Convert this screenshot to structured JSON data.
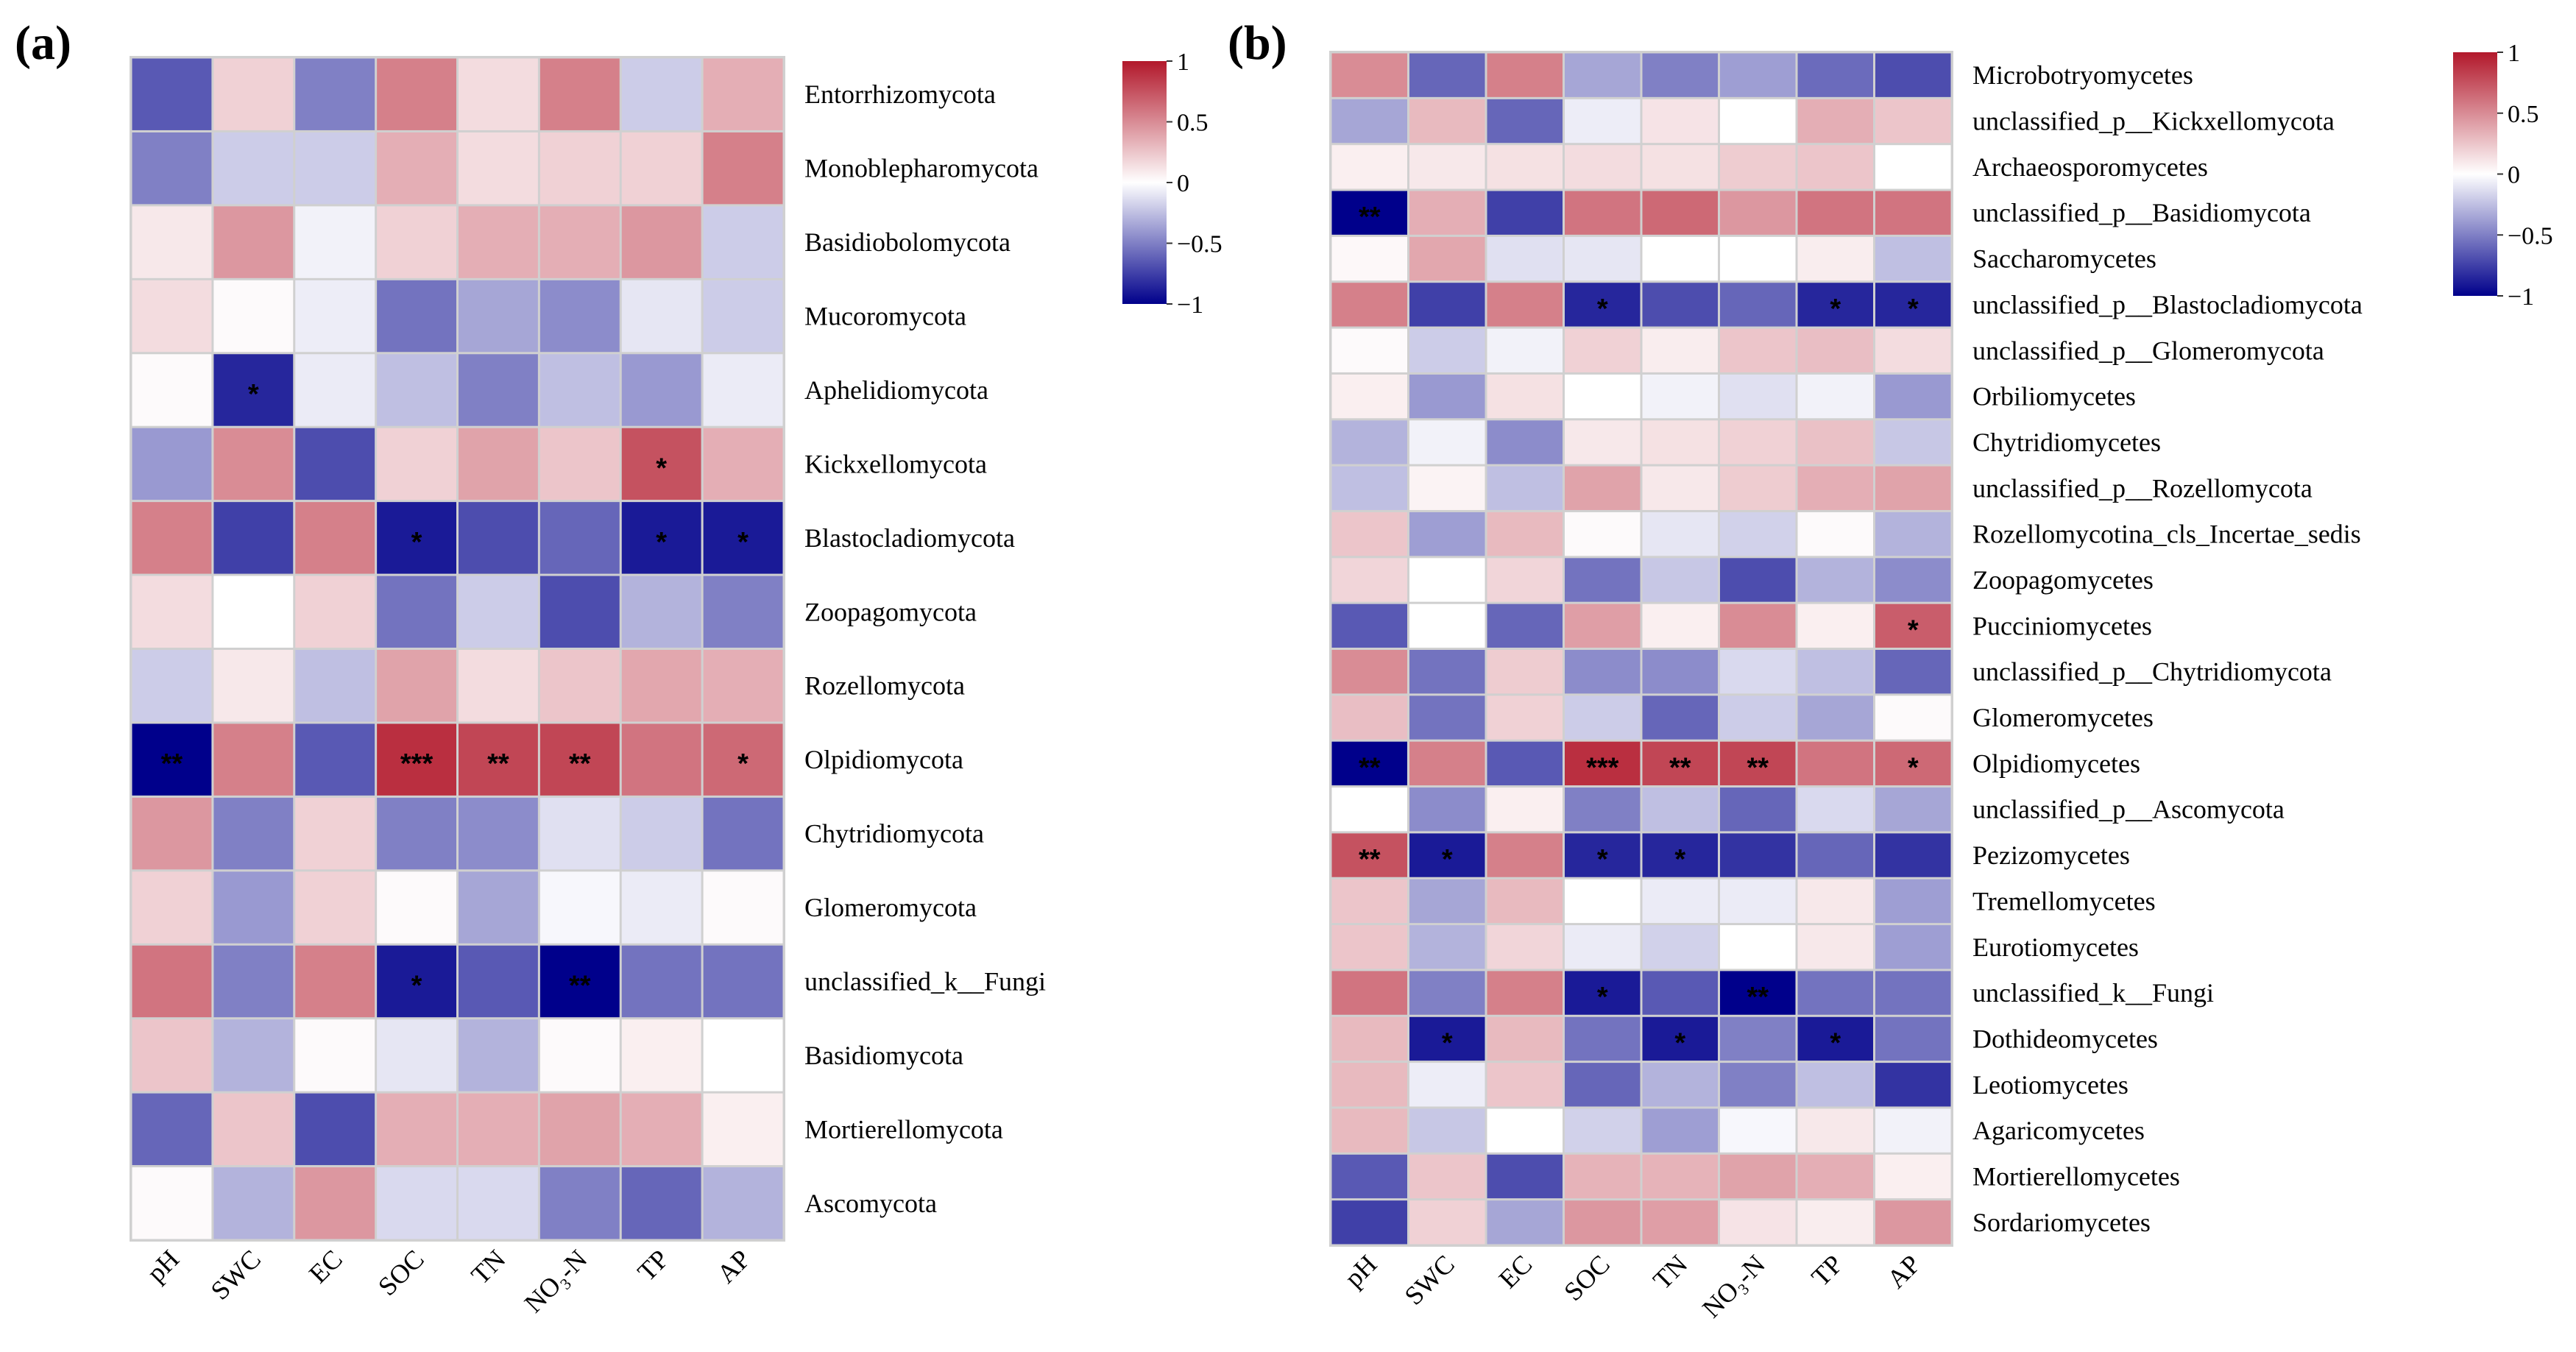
{
  "chart_data": [
    {
      "type": "heatmap",
      "panel_label": "(a)",
      "columns": [
        "pH",
        "SWC",
        "EC",
        "SOC",
        "TN",
        "NO₃-N",
        "TP",
        "AP"
      ],
      "rows": [
        "Entorrhizomycota",
        "Monoblepharomycota",
        "Basidiobolomycota",
        "Mucoromycota",
        "Aphelidiomycota",
        "Kickxellomycota",
        "Blastocladiomycota",
        "Zoopagomycota",
        "Rozellomycota",
        "Olpidiomycota",
        "Chytridiomycota",
        "Glomeromycota",
        "unclassified_k__Fungi",
        "Basidiomycota",
        "Mortierellomycota",
        "Ascomycota"
      ],
      "values": [
        [
          -0.65,
          0.2,
          -0.5,
          0.55,
          0.15,
          0.55,
          -0.2,
          0.35
        ],
        [
          -0.5,
          -0.2,
          -0.2,
          0.35,
          0.15,
          0.2,
          0.2,
          0.55
        ],
        [
          0.1,
          0.45,
          -0.05,
          0.2,
          0.35,
          0.35,
          0.45,
          -0.2
        ],
        [
          0.15,
          0.02,
          -0.07,
          -0.55,
          -0.35,
          -0.45,
          -0.1,
          -0.2
        ],
        [
          0.02,
          -0.85,
          -0.08,
          -0.25,
          -0.5,
          -0.25,
          -0.4,
          -0.08
        ],
        [
          -0.4,
          0.5,
          -0.7,
          0.2,
          0.4,
          0.25,
          0.75,
          0.35
        ],
        [
          0.55,
          -0.75,
          0.55,
          -0.9,
          -0.7,
          -0.6,
          -0.9,
          -0.9
        ],
        [
          0.15,
          0.0,
          0.2,
          -0.55,
          -0.2,
          -0.7,
          -0.3,
          -0.5
        ],
        [
          -0.2,
          0.1,
          -0.25,
          0.4,
          0.15,
          0.25,
          0.38,
          0.35
        ],
        [
          -1.0,
          0.55,
          -0.65,
          0.9,
          0.8,
          0.8,
          0.6,
          0.65
        ],
        [
          0.45,
          -0.5,
          0.2,
          -0.5,
          -0.45,
          -0.12,
          -0.2,
          -0.55
        ],
        [
          0.2,
          -0.4,
          0.2,
          0.02,
          -0.35,
          -0.03,
          -0.08,
          0.02
        ],
        [
          0.6,
          -0.5,
          0.55,
          -0.9,
          -0.65,
          -1.0,
          -0.55,
          -0.55
        ],
        [
          0.25,
          -0.3,
          0.02,
          -0.1,
          -0.3,
          0.02,
          0.07,
          0.0
        ],
        [
          -0.6,
          0.25,
          -0.7,
          0.35,
          0.35,
          0.4,
          0.35,
          0.07
        ],
        [
          0.02,
          -0.3,
          0.45,
          -0.15,
          -0.15,
          -0.5,
          -0.6,
          -0.3
        ]
      ],
      "significance": [
        [
          "",
          "",
          "",
          "",
          "",
          "",
          "",
          ""
        ],
        [
          "",
          "",
          "",
          "",
          "",
          "",
          "",
          ""
        ],
        [
          "",
          "",
          "",
          "",
          "",
          "",
          "",
          ""
        ],
        [
          "",
          "",
          "",
          "",
          "",
          "",
          "",
          ""
        ],
        [
          "",
          "*",
          "",
          "",
          "",
          "",
          "",
          ""
        ],
        [
          "",
          "",
          "",
          "",
          "",
          "",
          "*",
          ""
        ],
        [
          "",
          "",
          "",
          "*",
          "",
          "",
          "*",
          "*"
        ],
        [
          "",
          "",
          "",
          "",
          "",
          "",
          "",
          ""
        ],
        [
          "",
          "",
          "",
          "",
          "",
          "",
          "",
          ""
        ],
        [
          "**",
          "",
          "",
          "***",
          "**",
          "**",
          "",
          "*"
        ],
        [
          "",
          "",
          "",
          "",
          "",
          "",
          "",
          ""
        ],
        [
          "",
          "",
          "",
          "",
          "",
          "",
          "",
          ""
        ],
        [
          "",
          "",
          "",
          "*",
          "",
          "**",
          "",
          ""
        ],
        [
          "",
          "",
          "",
          "",
          "",
          "",
          "",
          ""
        ],
        [
          "",
          "",
          "",
          "",
          "",
          "",
          "",
          ""
        ],
        [
          "",
          "",
          "",
          "",
          "",
          "",
          "",
          ""
        ]
      ],
      "color_scale": {
        "min": -1,
        "max": 1,
        "low": "#00008B",
        "mid": "#FFFFFF",
        "high": "#B2182B",
        "ticks": [
          "1",
          "0.5",
          "0",
          "−0.5",
          "−1"
        ]
      }
    },
    {
      "type": "heatmap",
      "panel_label": "(b)",
      "columns": [
        "pH",
        "SWC",
        "EC",
        "SOC",
        "TN",
        "NO₃-N",
        "TP",
        "AP"
      ],
      "rows": [
        "Microbotryomycetes",
        "unclassified_p__Kickxellomycota",
        "Archaeosporomycetes",
        "unclassified_p__Basidiomycota",
        "Saccharomycetes",
        "unclassified_p__Blastocladiomycota",
        "unclassified_p__Glomeromycota",
        "Orbiliomycetes",
        "Chytridiomycetes",
        "unclassified_p__Rozellomycota",
        "Rozellomycotina_cls_Incertae_sedis",
        "Zoopagomycetes",
        "Pucciniomycetes",
        "unclassified_p__Chytridiomycota",
        "Glomeromycetes",
        "Olpidiomycetes",
        "unclassified_p__Ascomycota",
        "Pezizomycetes",
        "Tremellomycetes",
        "Eurotiomycetes",
        "unclassified_k__Fungi",
        "Dothideomycetes",
        "Leotiomycetes",
        "Agaricomycetes",
        "Mortierellomycetes",
        "Sordariomycetes"
      ],
      "values": [
        [
          0.5,
          -0.6,
          0.55,
          -0.35,
          -0.5,
          -0.38,
          -0.58,
          -0.7
        ],
        [
          -0.35,
          0.3,
          -0.6,
          -0.07,
          0.12,
          0.0,
          0.35,
          0.25
        ],
        [
          0.07,
          0.1,
          0.13,
          0.15,
          0.13,
          0.22,
          0.25,
          0.0
        ],
        [
          -1.0,
          0.35,
          -0.75,
          0.6,
          0.65,
          0.45,
          0.6,
          0.6
        ],
        [
          0.03,
          0.38,
          -0.12,
          -0.1,
          0.0,
          0.0,
          0.08,
          -0.25
        ],
        [
          0.55,
          -0.75,
          0.55,
          -0.85,
          -0.7,
          -0.6,
          -0.85,
          -0.85
        ],
        [
          0.02,
          -0.2,
          -0.05,
          0.2,
          0.08,
          0.25,
          0.28,
          0.15
        ],
        [
          0.07,
          -0.4,
          0.13,
          0.0,
          -0.05,
          -0.12,
          -0.05,
          -0.4
        ],
        [
          -0.3,
          -0.05,
          -0.45,
          0.1,
          0.13,
          0.2,
          0.27,
          -0.22
        ],
        [
          -0.25,
          0.05,
          -0.25,
          0.4,
          0.1,
          0.22,
          0.35,
          0.4
        ],
        [
          0.25,
          -0.38,
          0.3,
          0.02,
          -0.1,
          -0.18,
          0.02,
          -0.3
        ],
        [
          0.18,
          0.0,
          0.18,
          -0.55,
          -0.22,
          -0.7,
          -0.3,
          -0.45
        ],
        [
          -0.65,
          0.0,
          -0.6,
          0.42,
          0.07,
          0.5,
          0.07,
          0.7
        ],
        [
          0.5,
          -0.55,
          0.22,
          -0.45,
          -0.45,
          -0.15,
          -0.25,
          -0.6
        ],
        [
          0.28,
          -0.55,
          0.2,
          -0.2,
          -0.6,
          -0.2,
          -0.35,
          0.02
        ],
        [
          -1.0,
          0.55,
          -0.65,
          0.9,
          0.8,
          0.8,
          0.6,
          0.65
        ],
        [
          0.0,
          -0.45,
          0.07,
          -0.5,
          -0.25,
          -0.6,
          -0.15,
          -0.35
        ],
        [
          0.75,
          -0.9,
          0.55,
          -0.85,
          -0.85,
          -0.8,
          -0.6,
          -0.8
        ],
        [
          0.25,
          -0.35,
          0.3,
          0.0,
          -0.08,
          -0.08,
          0.1,
          -0.38
        ],
        [
          0.25,
          -0.3,
          0.18,
          -0.08,
          -0.18,
          0.0,
          0.1,
          -0.38
        ],
        [
          0.6,
          -0.5,
          0.55,
          -0.9,
          -0.65,
          -1.0,
          -0.55,
          -0.55
        ],
        [
          0.3,
          -0.9,
          0.3,
          -0.55,
          -0.9,
          -0.5,
          -0.9,
          -0.55
        ],
        [
          0.3,
          -0.07,
          0.25,
          -0.6,
          -0.3,
          -0.5,
          -0.25,
          -0.8
        ],
        [
          0.3,
          -0.22,
          0.0,
          -0.18,
          -0.38,
          -0.03,
          0.1,
          -0.05
        ],
        [
          -0.65,
          0.25,
          -0.7,
          0.33,
          0.33,
          0.4,
          0.35,
          0.07
        ],
        [
          -0.75,
          0.2,
          -0.35,
          0.45,
          0.42,
          0.12,
          0.08,
          0.45
        ]
      ],
      "significance": [
        [
          "",
          "",
          "",
          "",
          "",
          "",
          "",
          ""
        ],
        [
          "",
          "",
          "",
          "",
          "",
          "",
          "",
          ""
        ],
        [
          "",
          "",
          "",
          "",
          "",
          "",
          "",
          ""
        ],
        [
          "**",
          "",
          "",
          "",
          "",
          "",
          "",
          ""
        ],
        [
          "",
          "",
          "",
          "",
          "",
          "",
          "",
          ""
        ],
        [
          "",
          "",
          "",
          "*",
          "",
          "",
          "*",
          "*"
        ],
        [
          "",
          "",
          "",
          "",
          "",
          "",
          "",
          ""
        ],
        [
          "",
          "",
          "",
          "",
          "",
          "",
          "",
          ""
        ],
        [
          "",
          "",
          "",
          "",
          "",
          "",
          "",
          ""
        ],
        [
          "",
          "",
          "",
          "",
          "",
          "",
          "",
          ""
        ],
        [
          "",
          "",
          "",
          "",
          "",
          "",
          "",
          ""
        ],
        [
          "",
          "",
          "",
          "",
          "",
          "",
          "",
          ""
        ],
        [
          "",
          "",
          "",
          "",
          "",
          "",
          "",
          "*"
        ],
        [
          "",
          "",
          "",
          "",
          "",
          "",
          "",
          ""
        ],
        [
          "",
          "",
          "",
          "",
          "",
          "",
          "",
          ""
        ],
        [
          "**",
          "",
          "",
          "***",
          "**",
          "**",
          "",
          "*"
        ],
        [
          "",
          "",
          "",
          "",
          "",
          "",
          "",
          ""
        ],
        [
          "**",
          "*",
          "",
          "*",
          "*",
          "",
          "",
          ""
        ],
        [
          "",
          "",
          "",
          "",
          "",
          "",
          "",
          ""
        ],
        [
          "",
          "",
          "",
          "",
          "",
          "",
          "",
          ""
        ],
        [
          "",
          "",
          "",
          "*",
          "",
          "**",
          "",
          ""
        ],
        [
          "",
          "*",
          "",
          "",
          "*",
          "",
          "*",
          ""
        ],
        [
          "",
          "",
          "",
          "",
          "",
          "",
          "",
          ""
        ],
        [
          "",
          "",
          "",
          "",
          "",
          "",
          "",
          ""
        ],
        [
          "",
          "",
          "",
          "",
          "",
          "",
          "",
          ""
        ],
        [
          "",
          "",
          "",
          "",
          "",
          "",
          "",
          ""
        ]
      ],
      "color_scale": {
        "min": -1,
        "max": 1,
        "low": "#00008B",
        "mid": "#FFFFFF",
        "high": "#B2182B",
        "ticks": [
          "1",
          "0.5",
          "0",
          "−0.5",
          "−1"
        ]
      }
    }
  ]
}
